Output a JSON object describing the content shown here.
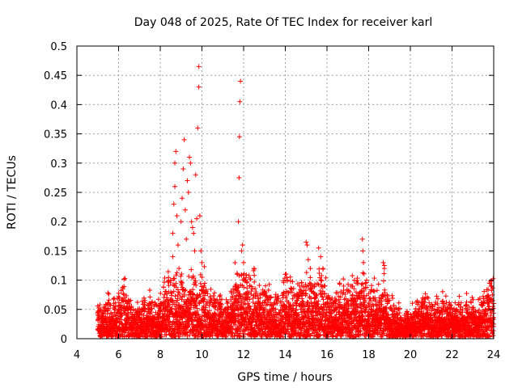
{
  "chart_data": {
    "type": "scatter",
    "title": "Day 048 of 2025, Rate Of TEC Index for receiver karl",
    "xlabel": "GPS time / hours",
    "ylabel": "ROTI / TECUs",
    "xlim": [
      4,
      24
    ],
    "ylim": [
      0,
      0.5
    ],
    "xticks": [
      4,
      6,
      8,
      10,
      12,
      14,
      16,
      18,
      20,
      22,
      24
    ],
    "yticks": [
      0,
      0.05,
      0.1,
      0.15,
      0.2,
      0.25,
      0.3,
      0.35,
      0.4,
      0.45,
      0.5
    ],
    "xtick_labels": [
      "4",
      "6",
      "8",
      "10",
      "12",
      "14",
      "16",
      "18",
      "20",
      "22",
      "24"
    ],
    "ytick_labels": [
      "0",
      "0.05",
      "0.1",
      "0.15",
      "0.2",
      "0.25",
      "0.3",
      "0.35",
      "0.4",
      "0.45",
      "0.5"
    ],
    "grid": true,
    "marker": "+",
    "color": "#ff0000",
    "series": [
      {
        "name": "ROTI",
        "points": [
          [
            5.0,
            0.045
          ],
          [
            5.2,
            0.04
          ],
          [
            5.5,
            0.05
          ],
          [
            5.8,
            0.045
          ],
          [
            6.0,
            0.05
          ],
          [
            6.2,
            0.085
          ],
          [
            6.3,
            0.07
          ],
          [
            6.4,
            0.06
          ],
          [
            6.6,
            0.05
          ],
          [
            6.9,
            0.045
          ],
          [
            7.2,
            0.05
          ],
          [
            7.5,
            0.06
          ],
          [
            7.7,
            0.055
          ],
          [
            8.0,
            0.06
          ],
          [
            8.2,
            0.075
          ],
          [
            8.4,
            0.08
          ],
          [
            8.5,
            0.1
          ],
          [
            8.6,
            0.18
          ],
          [
            8.6,
            0.14
          ],
          [
            8.65,
            0.23
          ],
          [
            8.7,
            0.26
          ],
          [
            8.7,
            0.3
          ],
          [
            8.75,
            0.32
          ],
          [
            8.8,
            0.21
          ],
          [
            8.85,
            0.16
          ],
          [
            8.9,
            0.12
          ],
          [
            9.0,
            0.2
          ],
          [
            9.05,
            0.24
          ],
          [
            9.1,
            0.29
          ],
          [
            9.15,
            0.34
          ],
          [
            9.2,
            0.22
          ],
          [
            9.25,
            0.17
          ],
          [
            9.3,
            0.27
          ],
          [
            9.35,
            0.25
          ],
          [
            9.4,
            0.31
          ],
          [
            9.45,
            0.3
          ],
          [
            9.5,
            0.2
          ],
          [
            9.55,
            0.19
          ],
          [
            9.6,
            0.18
          ],
          [
            9.65,
            0.15
          ],
          [
            9.7,
            0.28
          ],
          [
            9.75,
            0.205
          ],
          [
            9.8,
            0.36
          ],
          [
            9.85,
            0.43
          ],
          [
            9.85,
            0.465
          ],
          [
            9.9,
            0.21
          ],
          [
            9.95,
            0.15
          ],
          [
            10.0,
            0.13
          ],
          [
            10.1,
            0.09
          ],
          [
            10.2,
            0.08
          ],
          [
            10.4,
            0.07
          ],
          [
            10.6,
            0.06
          ],
          [
            10.9,
            0.06
          ],
          [
            11.2,
            0.05
          ],
          [
            11.5,
            0.085
          ],
          [
            11.6,
            0.09
          ],
          [
            11.7,
            0.11
          ],
          [
            11.75,
            0.2
          ],
          [
            11.78,
            0.275
          ],
          [
            11.8,
            0.345
          ],
          [
            11.82,
            0.405
          ],
          [
            11.85,
            0.44
          ],
          [
            11.9,
            0.15
          ],
          [
            11.95,
            0.16
          ],
          [
            12.0,
            0.13
          ],
          [
            12.1,
            0.1
          ],
          [
            12.3,
            0.09
          ],
          [
            12.5,
            0.12
          ],
          [
            12.6,
            0.08
          ],
          [
            12.8,
            0.07
          ],
          [
            13.0,
            0.08
          ],
          [
            13.3,
            0.07
          ],
          [
            13.6,
            0.065
          ],
          [
            13.9,
            0.07
          ],
          [
            14.0,
            0.11
          ],
          [
            14.1,
            0.1
          ],
          [
            14.3,
            0.085
          ],
          [
            14.6,
            0.075
          ],
          [
            14.8,
            0.09
          ],
          [
            15.0,
            0.165
          ],
          [
            15.05,
            0.16
          ],
          [
            15.1,
            0.135
          ],
          [
            15.2,
            0.12
          ],
          [
            15.4,
            0.09
          ],
          [
            15.6,
            0.155
          ],
          [
            15.7,
            0.14
          ],
          [
            15.8,
            0.12
          ],
          [
            15.9,
            0.09
          ],
          [
            16.1,
            0.07
          ],
          [
            16.4,
            0.06
          ],
          [
            16.6,
            0.095
          ],
          [
            16.8,
            0.09
          ],
          [
            17.0,
            0.08
          ],
          [
            17.2,
            0.09
          ],
          [
            17.4,
            0.095
          ],
          [
            17.6,
            0.08
          ],
          [
            17.7,
            0.17
          ],
          [
            17.72,
            0.15
          ],
          [
            17.75,
            0.13
          ],
          [
            17.9,
            0.1
          ],
          [
            18.1,
            0.08
          ],
          [
            18.3,
            0.07
          ],
          [
            18.5,
            0.07
          ],
          [
            18.7,
            0.13
          ],
          [
            18.75,
            0.12
          ],
          [
            18.9,
            0.06
          ],
          [
            19.1,
            0.05
          ],
          [
            19.4,
            0.04
          ],
          [
            19.8,
            0.03
          ],
          [
            20.1,
            0.035
          ],
          [
            20.4,
            0.05
          ],
          [
            20.6,
            0.07
          ],
          [
            20.8,
            0.055
          ],
          [
            21.0,
            0.04
          ],
          [
            21.3,
            0.045
          ],
          [
            21.6,
            0.06
          ],
          [
            21.9,
            0.045
          ],
          [
            22.2,
            0.04
          ],
          [
            22.4,
            0.05
          ],
          [
            22.7,
            0.045
          ],
          [
            23.0,
            0.05
          ],
          [
            23.3,
            0.045
          ],
          [
            23.5,
            0.06
          ],
          [
            23.7,
            0.07
          ],
          [
            23.8,
            0.095
          ],
          [
            23.9,
            0.09
          ],
          [
            24.0,
            0.06
          ]
        ]
      }
    ]
  }
}
